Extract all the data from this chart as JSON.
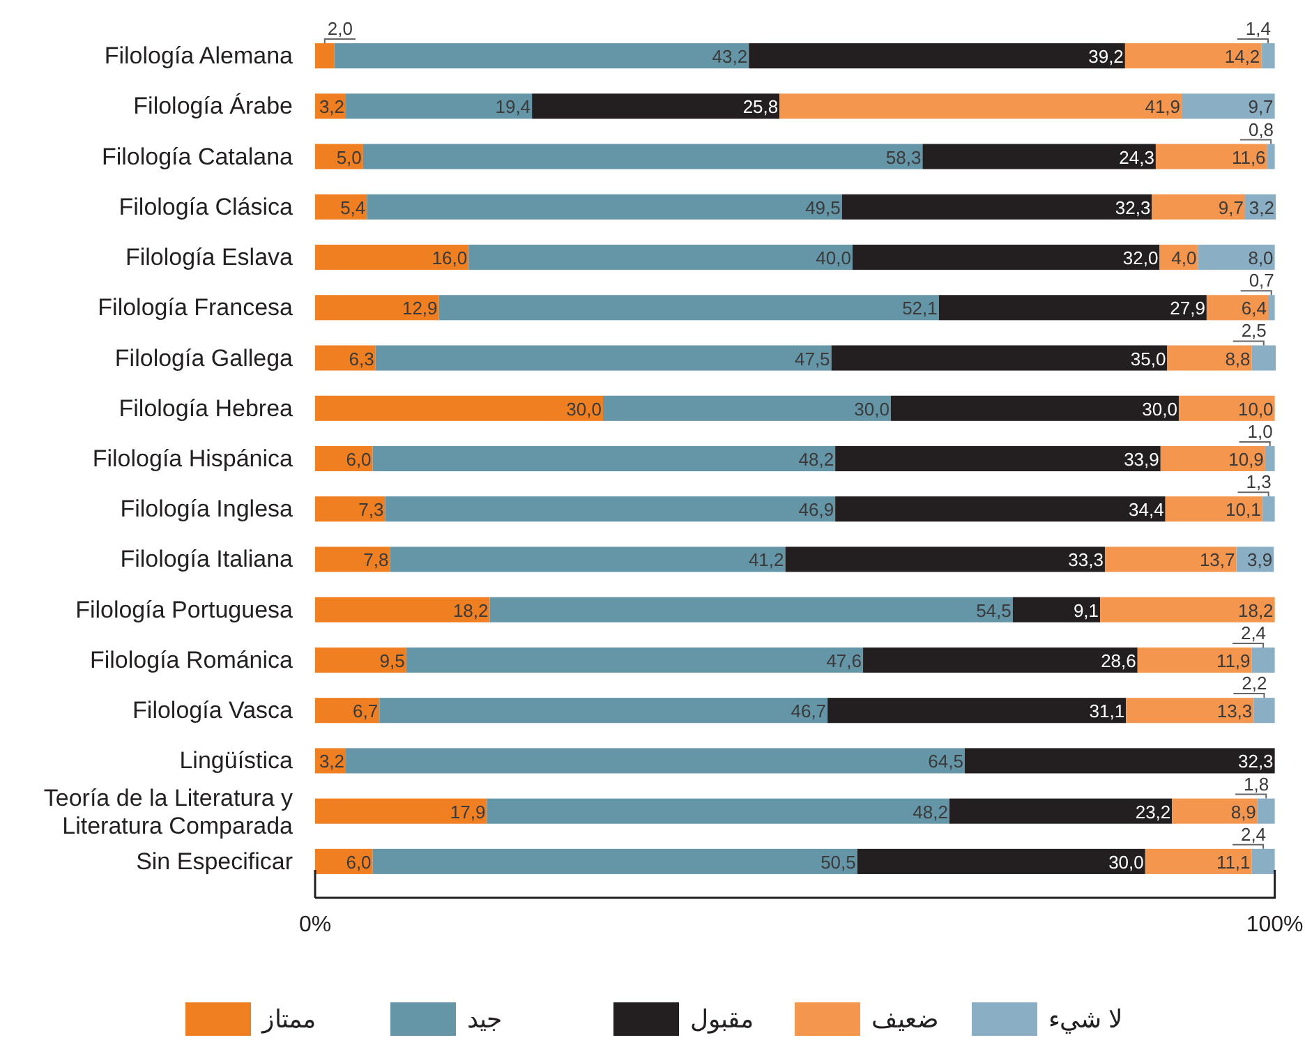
{
  "chart_data": {
    "type": "bar",
    "orientation": "horizontal",
    "stacked": true,
    "categories": [
      "Filología Alemana",
      "Filología Árabe",
      "Filología Catalana",
      "Filología Clásica",
      "Filología Eslava",
      "Filología Francesa",
      "Filología Gallega",
      "Filología Hebrea",
      "Filología Hispánica",
      "Filología Inglesa",
      "Filología Italiana",
      "Filología Portuguesa",
      "Filología Románica",
      "Filología Vasca",
      "Lingüística",
      "Teoría de la Literatura y Literatura Comparada",
      "Sin Especificar"
    ],
    "series": [
      {
        "name": "ممتاز",
        "color": "#f07f22",
        "values": [
          2.0,
          3.2,
          5.0,
          5.4,
          16.0,
          12.9,
          6.3,
          30.0,
          6.0,
          7.3,
          7.8,
          18.2,
          9.5,
          6.7,
          3.2,
          17.9,
          6.0
        ],
        "value_labels": [
          "2,0",
          "3,2",
          "5,0",
          "5,4",
          "16,0",
          "12,9",
          "6,3",
          "30,0",
          "6,0",
          "7,3",
          "7,8",
          "18,2",
          "9,5",
          "6,7",
          "3,2",
          "17,9",
          "6,0"
        ]
      },
      {
        "name": "جيد",
        "color": "#6496a8",
        "values": [
          43.2,
          19.4,
          58.3,
          49.5,
          40.0,
          52.1,
          47.5,
          30.0,
          48.2,
          46.9,
          41.2,
          54.5,
          47.6,
          46.7,
          64.5,
          48.2,
          50.5
        ],
        "value_labels": [
          "43,2",
          "19,4",
          "58,3",
          "49,5",
          "40,0",
          "52,1",
          "47,5",
          "30,0",
          "48,2",
          "46,9",
          "41,2",
          "54,5",
          "47,6",
          "46,7",
          "64,5",
          "48,2",
          "50,5"
        ]
      },
      {
        "name": "مقبول",
        "color": "#231f20",
        "values": [
          39.2,
          25.8,
          24.3,
          32.3,
          32.0,
          27.9,
          35.0,
          30.0,
          33.9,
          34.4,
          33.3,
          9.1,
          28.6,
          31.1,
          32.3,
          23.2,
          30.0
        ],
        "value_labels": [
          "39,2",
          "25,8",
          "24,3",
          "32,3",
          "32,0",
          "27,9",
          "35,0",
          "30,0",
          "33,9",
          "34,4",
          "33,3",
          "9,1",
          "28,6",
          "31,1",
          "32,3",
          "23,2",
          "30,0"
        ]
      },
      {
        "name": "ضعيف",
        "color": "#f5964f",
        "values": [
          14.2,
          41.9,
          11.6,
          9.7,
          4.0,
          6.4,
          8.8,
          10.0,
          10.9,
          10.1,
          13.7,
          18.2,
          11.9,
          13.3,
          null,
          8.9,
          11.1
        ],
        "value_labels": [
          "14,2",
          "41,9",
          "11,6",
          "9,7",
          "4,0",
          "6,4",
          "8,8",
          "10,0",
          "10,9",
          "10,1",
          "13,7",
          "18,2",
          "11,9",
          "13,3",
          null,
          "8,9",
          "11,1"
        ]
      },
      {
        "name": "لا شيء",
        "color": "#8aaec4",
        "values": [
          1.4,
          9.7,
          0.8,
          3.2,
          8.0,
          0.7,
          2.5,
          null,
          1.0,
          1.3,
          3.9,
          null,
          2.4,
          2.2,
          null,
          1.8,
          2.4
        ],
        "value_labels": [
          "1,4",
          "9,7",
          "0,8",
          "3,2",
          "8,0",
          "0,7",
          "2,5",
          null,
          "1,0",
          "1,3",
          "3,9",
          null,
          "2,4",
          "2,2",
          null,
          "1,8",
          "2,4"
        ]
      }
    ],
    "xlim": [
      0,
      100.1
    ],
    "xticks": [
      {
        "value": 0,
        "label": "0%"
      },
      {
        "value": 100,
        "label": "100%"
      }
    ],
    "legend": "bottom"
  }
}
